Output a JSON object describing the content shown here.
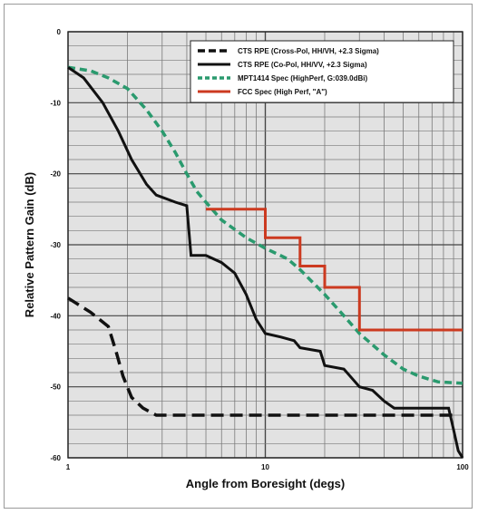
{
  "chart_data": {
    "type": "line",
    "xscale": "log",
    "xlim": [
      1,
      100
    ],
    "ylim": [
      -60,
      0
    ],
    "xlabel": "Angle from Boresight (degs)",
    "ylabel": "Relative Pattern Gain (dB)",
    "xticks": [
      "1",
      "10",
      "100"
    ],
    "yticks": [
      "0",
      "-10",
      "-20",
      "-30",
      "-40",
      "-50",
      "-60"
    ],
    "grid": true,
    "legend_position": "top-right",
    "series": [
      {
        "name": "CTS RPE (Cross-Pol, HH/VH, +2.3 Sigma)",
        "color": "#111111",
        "style": "dashed",
        "points": [
          [
            1,
            -37.5
          ],
          [
            1.3,
            -39.5
          ],
          [
            1.6,
            -41.5
          ],
          [
            1.75,
            -45
          ],
          [
            1.9,
            -48.5
          ],
          [
            2.1,
            -51.5
          ],
          [
            2.4,
            -53
          ],
          [
            2.8,
            -54
          ],
          [
            3,
            -54
          ],
          [
            10,
            -54
          ],
          [
            50,
            -54
          ],
          [
            90,
            -54
          ]
        ]
      },
      {
        "name": "CTS RPE (Co-Pol, HH/VV, +2.3 Sigma)",
        "color": "#111111",
        "style": "solid",
        "points": [
          [
            1,
            -5
          ],
          [
            1.2,
            -6.5
          ],
          [
            1.5,
            -10
          ],
          [
            1.8,
            -14
          ],
          [
            2.1,
            -18
          ],
          [
            2.5,
            -21.5
          ],
          [
            2.8,
            -23
          ],
          [
            3.5,
            -24
          ],
          [
            4,
            -24.5
          ],
          [
            4.2,
            -31.5
          ],
          [
            5,
            -31.5
          ],
          [
            6,
            -32.5
          ],
          [
            7,
            -34
          ],
          [
            8,
            -37
          ],
          [
            9,
            -40.5
          ],
          [
            10,
            -42.5
          ],
          [
            12,
            -43
          ],
          [
            14,
            -43.5
          ],
          [
            15,
            -44.5
          ],
          [
            19,
            -45
          ],
          [
            20,
            -47
          ],
          [
            25,
            -47.5
          ],
          [
            30,
            -50
          ],
          [
            35,
            -50.5
          ],
          [
            40,
            -52
          ],
          [
            45,
            -53
          ],
          [
            50,
            -53
          ],
          [
            85,
            -53
          ],
          [
            90,
            -56
          ],
          [
            95,
            -59
          ],
          [
            100,
            -60
          ]
        ]
      },
      {
        "name": "MPT1414 Spec (HighPerf, G:039.0dBi)",
        "color": "#2a9a6e",
        "style": "dashed",
        "points": [
          [
            1,
            -5
          ],
          [
            1.3,
            -5.5
          ],
          [
            1.6,
            -6.5
          ],
          [
            2,
            -8
          ],
          [
            2.5,
            -11
          ],
          [
            3,
            -14
          ],
          [
            3.5,
            -17
          ],
          [
            4,
            -20
          ],
          [
            4.5,
            -22.5
          ],
          [
            5,
            -24
          ],
          [
            6,
            -26.5
          ],
          [
            8,
            -29
          ],
          [
            10,
            -30.5
          ],
          [
            13,
            -32
          ],
          [
            15,
            -33.5
          ],
          [
            20,
            -37
          ],
          [
            25,
            -40
          ],
          [
            30,
            -42.5
          ],
          [
            40,
            -45.5
          ],
          [
            50,
            -47.5
          ],
          [
            60,
            -48.5
          ],
          [
            75,
            -49.3
          ],
          [
            100,
            -49.5
          ]
        ]
      },
      {
        "name": "FCC Spec (High Perf, \"A\")",
        "color": "#cc3a20",
        "style": "solid",
        "points": [
          [
            5,
            -25
          ],
          [
            10,
            -25
          ],
          [
            10,
            -29
          ],
          [
            15,
            -29
          ],
          [
            15,
            -33
          ],
          [
            20,
            -33
          ],
          [
            20,
            -36
          ],
          [
            30,
            -36
          ],
          [
            30,
            -42
          ],
          [
            100,
            -42
          ]
        ]
      }
    ]
  }
}
